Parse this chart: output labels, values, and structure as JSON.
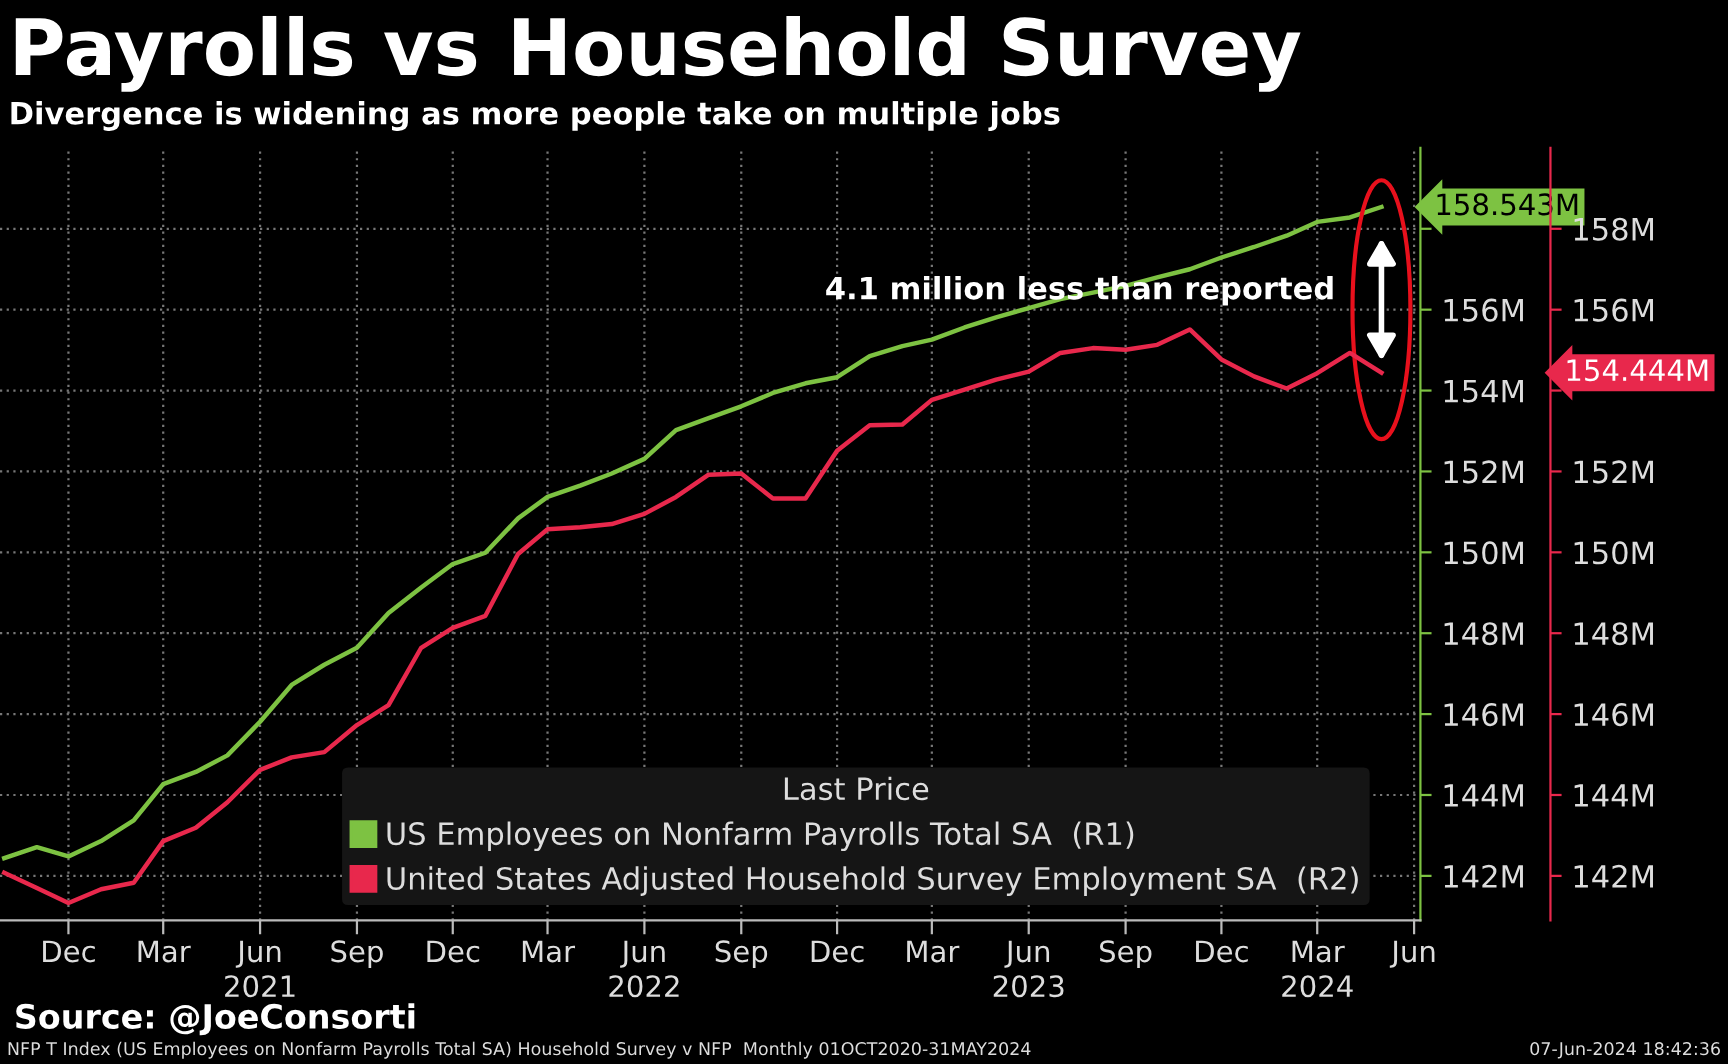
{
  "chart_data": {
    "type": "line",
    "title": "Payrolls vs Household Survey",
    "subtitle": "Divergence is widening as more people take on multiple jobs",
    "x": [
      "2020-10",
      "2020-11",
      "2020-12",
      "2021-01",
      "2021-02",
      "2021-03",
      "2021-04",
      "2021-05",
      "2021-06",
      "2021-07",
      "2021-08",
      "2021-09",
      "2021-10",
      "2021-11",
      "2021-12",
      "2022-01",
      "2022-02",
      "2022-03",
      "2022-04",
      "2022-05",
      "2022-06",
      "2022-07",
      "2022-08",
      "2022-09",
      "2022-10",
      "2022-11",
      "2022-12",
      "2023-01",
      "2023-02",
      "2023-03",
      "2023-04",
      "2023-05",
      "2023-06",
      "2023-07",
      "2023-08",
      "2023-09",
      "2023-10",
      "2023-11",
      "2023-12",
      "2024-01",
      "2024-02",
      "2024-03",
      "2024-04",
      "2024-05"
    ],
    "series": [
      {
        "name": "US Employees on Nonfarm Payrolls Total SA  (R1)",
        "color": "#7dc242",
        "values": [
          142.44,
          142.71,
          142.48,
          142.86,
          143.37,
          144.27,
          144.57,
          144.98,
          145.81,
          146.72,
          147.22,
          147.64,
          148.5,
          149.13,
          149.71,
          149.99,
          150.84,
          151.37,
          151.65,
          151.95,
          152.31,
          153.02,
          153.32,
          153.61,
          153.94,
          154.18,
          154.33,
          154.85,
          155.1,
          155.26,
          155.56,
          155.81,
          156.04,
          156.26,
          156.42,
          156.59,
          156.8,
          157.0,
          157.29,
          157.55,
          157.83,
          158.17,
          158.28,
          158.54
        ]
      },
      {
        "name": "United States Adjusted Household Survey Employment SA  (R2)",
        "color": "#e8284c",
        "axis": "y2",
        "values": [
          142.08,
          141.7,
          141.33,
          141.67,
          141.83,
          142.86,
          143.19,
          143.82,
          144.62,
          144.93,
          145.06,
          145.73,
          146.22,
          147.64,
          148.13,
          148.43,
          149.96,
          150.57,
          150.62,
          150.7,
          150.95,
          151.37,
          151.92,
          151.95,
          151.33,
          151.33,
          152.51,
          153.14,
          153.16,
          153.77,
          154.02,
          154.27,
          154.47,
          154.93,
          155.05,
          155.01,
          155.13,
          155.51,
          154.77,
          154.35,
          154.05,
          154.43,
          154.93,
          154.44
        ]
      }
    ],
    "xlim": [
      "2020-09-27",
      "2024-06-07"
    ],
    "xticks": [
      {
        "value": "2020-12",
        "label": "Dec"
      },
      {
        "value": "2021-03",
        "label": "Mar"
      },
      {
        "value": "2021-06",
        "label": "Jun\n2021"
      },
      {
        "value": "2021-09",
        "label": "Sep"
      },
      {
        "value": "2021-12",
        "label": "Dec"
      },
      {
        "value": "2022-03",
        "label": "Mar"
      },
      {
        "value": "2022-06",
        "label": "Jun\n2022"
      },
      {
        "value": "2022-09",
        "label": "Sep"
      },
      {
        "value": "2022-12",
        "label": "Dec"
      },
      {
        "value": "2023-03",
        "label": "Mar"
      },
      {
        "value": "2023-06",
        "label": "Jun\n2023"
      },
      {
        "value": "2023-09",
        "label": "Sep"
      },
      {
        "value": "2023-12",
        "label": "Dec"
      },
      {
        "value": "2024-03",
        "label": "Mar\n2024"
      },
      {
        "value": "2024-06",
        "label": "Jun"
      }
    ],
    "ylim": [
      140.9,
      160.0
    ],
    "yticks": [
      {
        "value": 142,
        "label": "142M"
      },
      {
        "value": 144,
        "label": "144M"
      },
      {
        "value": 146,
        "label": "146M"
      },
      {
        "value": 148,
        "label": "148M"
      },
      {
        "value": 150,
        "label": "150M"
      },
      {
        "value": 152,
        "label": "152M"
      },
      {
        "value": 154,
        "label": "154M"
      },
      {
        "value": 156,
        "label": "156M"
      },
      {
        "value": 158,
        "label": null
      }
    ],
    "y2lim": [
      140.9,
      160.0
    ],
    "y2ticks": [
      {
        "value": 142,
        "label": "142M"
      },
      {
        "value": 144,
        "label": "144M"
      },
      {
        "value": 146,
        "label": "146M"
      },
      {
        "value": 148,
        "label": "148M"
      },
      {
        "value": 150,
        "label": "150M"
      },
      {
        "value": 152,
        "label": "152M"
      },
      {
        "value": 154,
        "label": null
      },
      {
        "value": 156,
        "label": "156M"
      },
      {
        "value": 158,
        "label": "158M"
      }
    ],
    "grid": true,
    "legend": "bottom right",
    "legend_title": "Last Price",
    "line_style": "solid",
    "annotations": [
      "4.1 million less than reported",
      "158.543M",
      "154.444M",
      "Source: @JoeConsorti",
      "NFP T Index (US Employees on Nonfarm Payrolls Total SA) Household Survey v NFP  Monthly 01OCT2020-31MAY2024",
      "07-Jun-2024 18:42:36"
    ]
  }
}
